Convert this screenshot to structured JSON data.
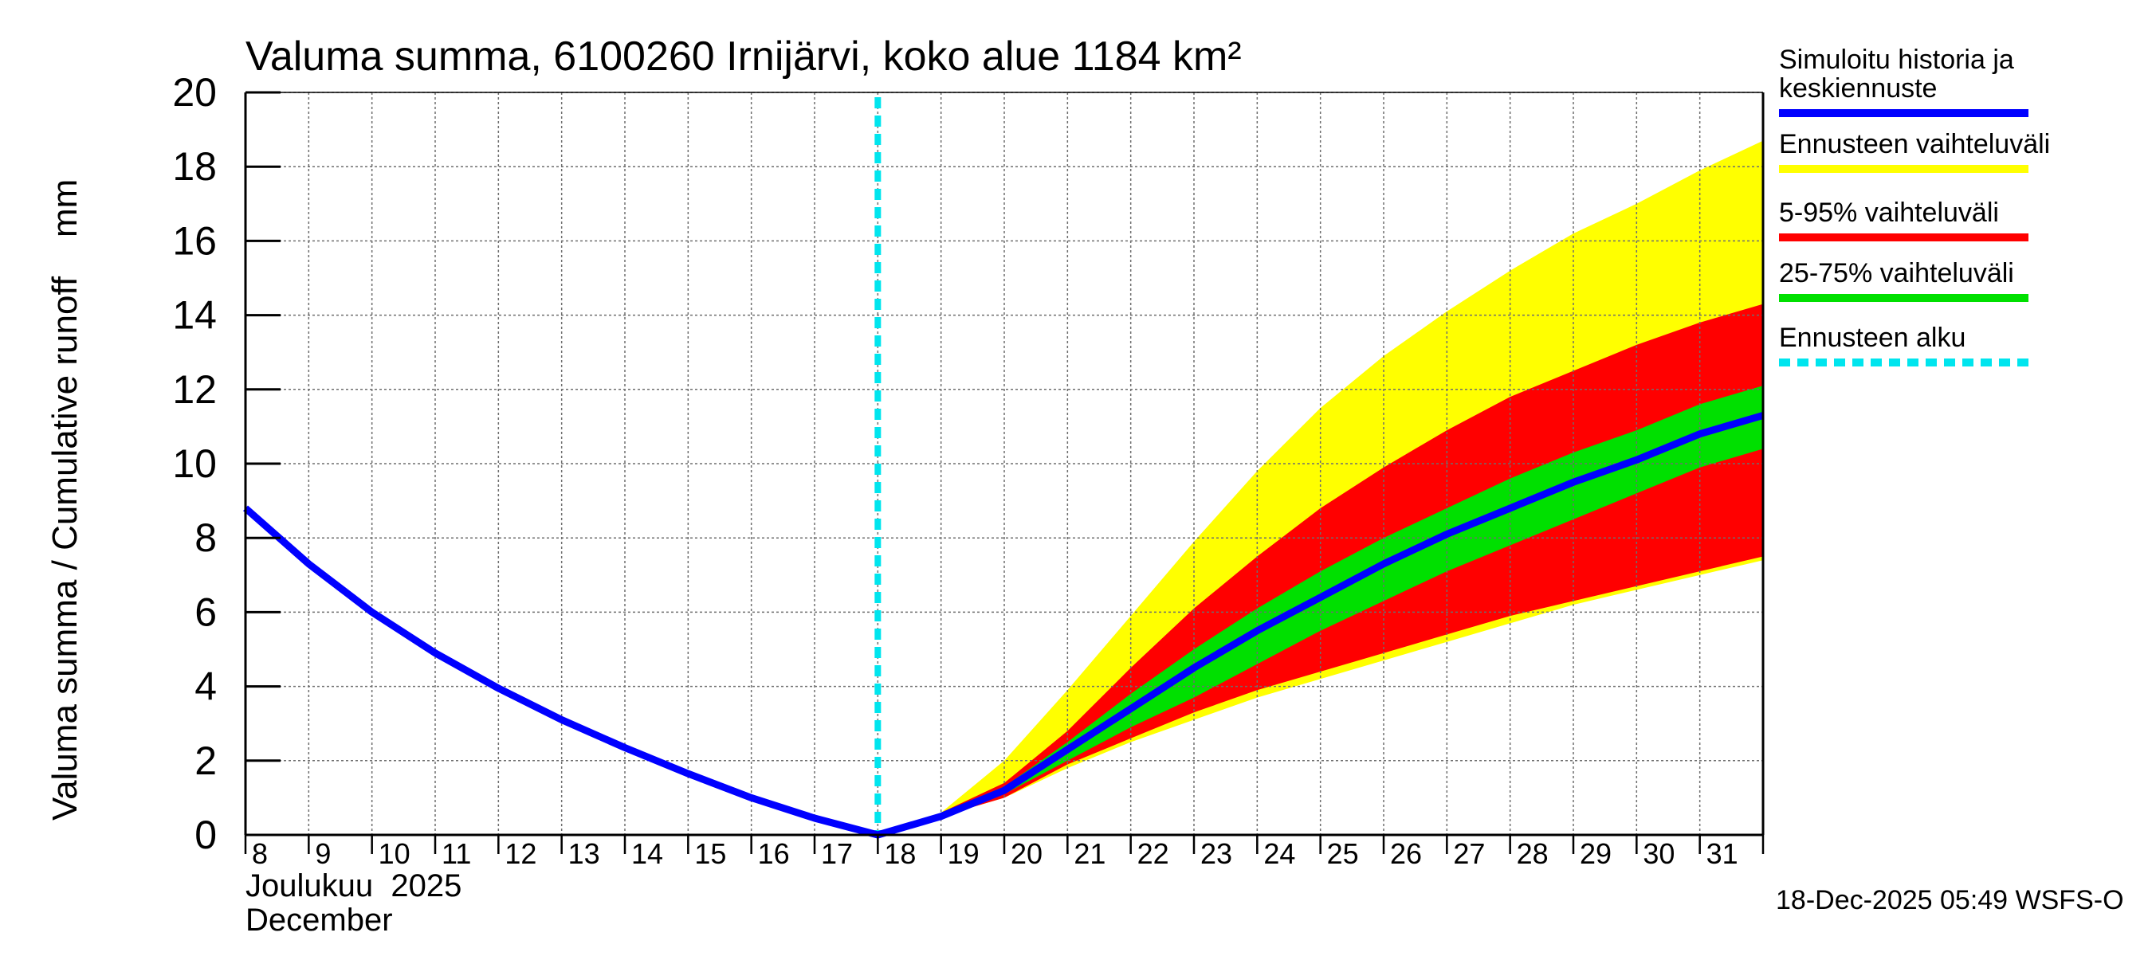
{
  "chart_data": {
    "type": "area",
    "title": "Valuma summa, 6100260 Irnijärvi, koko alue 1184 km²",
    "ylabel": "Valuma summa / Cumulative runoff    mm",
    "ylim": [
      0,
      20
    ],
    "yticks": [
      0,
      2,
      4,
      6,
      8,
      10,
      12,
      14,
      16,
      18,
      20
    ],
    "x_tick_labels": [
      "8",
      "9",
      "10",
      "11",
      "12",
      "13",
      "14",
      "15",
      "16",
      "17",
      "18",
      "19",
      "20",
      "21",
      "22",
      "23",
      "24",
      "25",
      "26",
      "27",
      "28",
      "29",
      "30",
      "31"
    ],
    "xlim_days": [
      8,
      32
    ],
    "month_label_fi": "Joulukuu  2025",
    "month_label_en": "December",
    "forecast_start_day": 18,
    "grid": true,
    "legend": [
      {
        "label": "Simuloitu historia ja keskiennuste",
        "label_lines": [
          "Simuloitu historia ja",
          "keskiennuste"
        ],
        "color": "#0000ff",
        "style": "solid"
      },
      {
        "label": "Ennusteen vaihteluväli",
        "label_lines": [
          "Ennusteen vaihteluväli"
        ],
        "color": "#ffff00",
        "style": "solid"
      },
      {
        "label": "5-95% vaihteluväli",
        "label_lines": [
          "5-95% vaihteluväli"
        ],
        "color": "#ff0000",
        "style": "solid"
      },
      {
        "label": "25-75% vaihteluväli",
        "label_lines": [
          "25-75% vaihteluväli"
        ],
        "color": "#00e000",
        "style": "solid"
      },
      {
        "label": "Ennusteen alku",
        "label_lines": [
          "Ennusteen alku"
        ],
        "color": "#00e5ee",
        "style": "dashed"
      }
    ],
    "band_x": [
      19,
      20,
      21,
      22,
      23,
      24,
      25,
      26,
      27,
      28,
      29,
      30,
      31,
      32
    ],
    "band_full_max": [
      0.6,
      2.0,
      3.9,
      5.9,
      7.9,
      9.8,
      11.5,
      12.9,
      14.1,
      15.2,
      16.2,
      17.0,
      17.9,
      18.7
    ],
    "band_full_min": [
      0.5,
      1.0,
      1.8,
      2.5,
      3.1,
      3.7,
      4.2,
      4.7,
      5.2,
      5.7,
      6.2,
      6.6,
      7.0,
      7.4
    ],
    "band_p95": [
      0.6,
      1.4,
      2.8,
      4.5,
      6.1,
      7.5,
      8.8,
      9.9,
      10.9,
      11.8,
      12.5,
      13.2,
      13.8,
      14.3
    ],
    "band_p5": [
      0.5,
      1.0,
      1.9,
      2.6,
      3.3,
      3.9,
      4.4,
      4.9,
      5.4,
      5.9,
      6.3,
      6.7,
      7.1,
      7.5
    ],
    "band_p75": [
      0.6,
      1.3,
      2.5,
      3.8,
      5.0,
      6.1,
      7.1,
      8.0,
      8.8,
      9.6,
      10.3,
      10.9,
      11.6,
      12.1
    ],
    "band_p25": [
      0.5,
      1.1,
      2.0,
      2.9,
      3.7,
      4.6,
      5.5,
      6.3,
      7.1,
      7.8,
      8.5,
      9.2,
      9.9,
      10.4
    ],
    "series": [
      {
        "name": "Simuloitu historia ja keskiennuste",
        "x": [
          8,
          9,
          10,
          11,
          12,
          13,
          14,
          15,
          16,
          17,
          18,
          19,
          20,
          21,
          22,
          23,
          24,
          25,
          26,
          27,
          28,
          29,
          30,
          31,
          32
        ],
        "values": [
          8.8,
          7.3,
          6.0,
          4.9,
          3.95,
          3.1,
          2.35,
          1.65,
          1.0,
          0.45,
          0.0,
          0.5,
          1.2,
          2.3,
          3.4,
          4.5,
          5.5,
          6.4,
          7.3,
          8.1,
          8.8,
          9.5,
          10.1,
          10.8,
          11.3
        ],
        "color": "#0000ff"
      }
    ]
  },
  "footer": {
    "timestamp": "18-Dec-2025 05:49 WSFS-O"
  }
}
